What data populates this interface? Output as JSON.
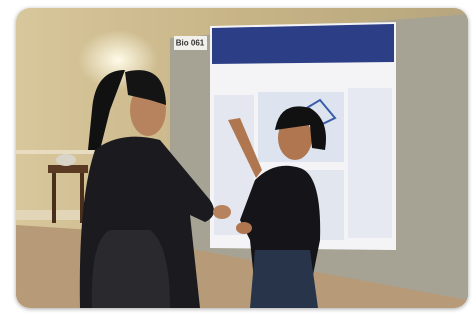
{
  "photo": {
    "board_label": "Bio 061"
  }
}
